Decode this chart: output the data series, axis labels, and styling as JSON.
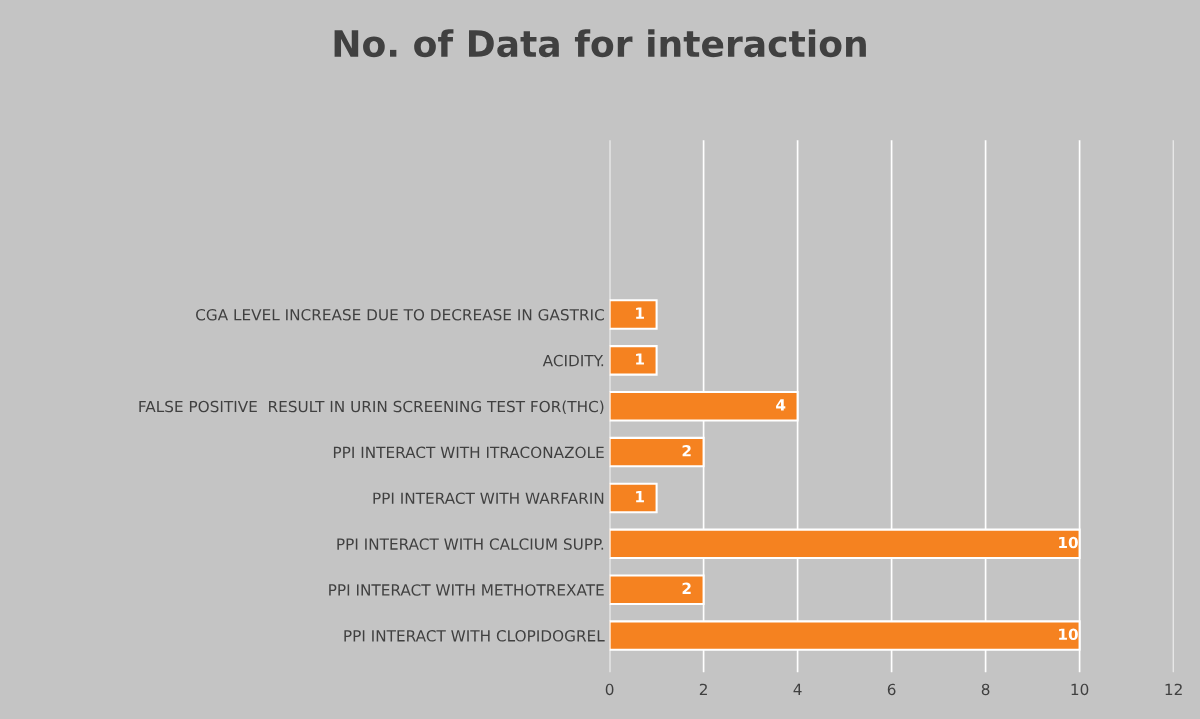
{
  "chart_data": {
    "type": "bar",
    "orientation": "horizontal",
    "title": "No. of Data for interaction",
    "categories": [
      "CGA LEVEL INCREASE DUE TO DECREASE IN GASTRIC",
      "ACIDITY.",
      "FALSE POSITIVE  RESULT IN URIN SCREENING TEST FOR(THC)",
      "PPI INTERACT WITH ITRACONAZOLE",
      "PPI INTERACT WITH WARFARIN",
      "PPI INTERACT WITH CALCIUM SUPP.",
      "PPI INTERACT WITH METHOTREXATE",
      "PPI INTERACT WITH CLOPIDOGREL"
    ],
    "values": [
      1,
      1,
      4,
      2,
      1,
      10,
      2,
      10
    ],
    "color": "#f58220",
    "xlim": [
      0,
      12
    ],
    "xticks": [
      0,
      2,
      4,
      6,
      8,
      10,
      12
    ],
    "grid": "x",
    "data_labels": true
  }
}
